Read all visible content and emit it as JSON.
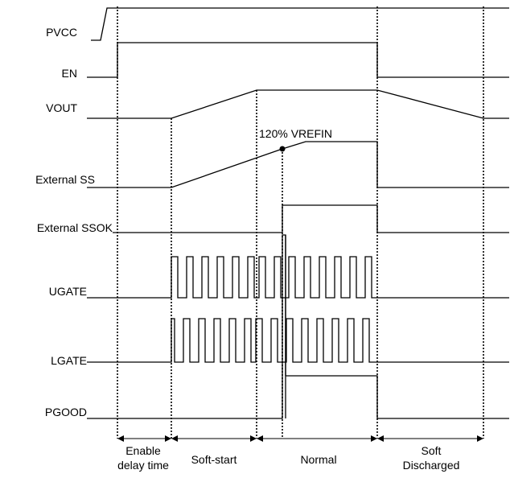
{
  "signals": {
    "pvcc": "PVCC",
    "en": "EN",
    "vout": "VOUT",
    "ext_ss": "External SS",
    "ext_ssok": "External SSOK",
    "ugate": "UGATE",
    "lgate": "LGATE",
    "pgood": "PGOOD"
  },
  "annotation": "120% VREFIN",
  "phases": {
    "enable_line1": "Enable",
    "enable_line2": "delay time",
    "soft_start": "Soft-start",
    "normal": "Normal",
    "soft_line1": "Soft",
    "soft_line2": "Discharged"
  }
}
